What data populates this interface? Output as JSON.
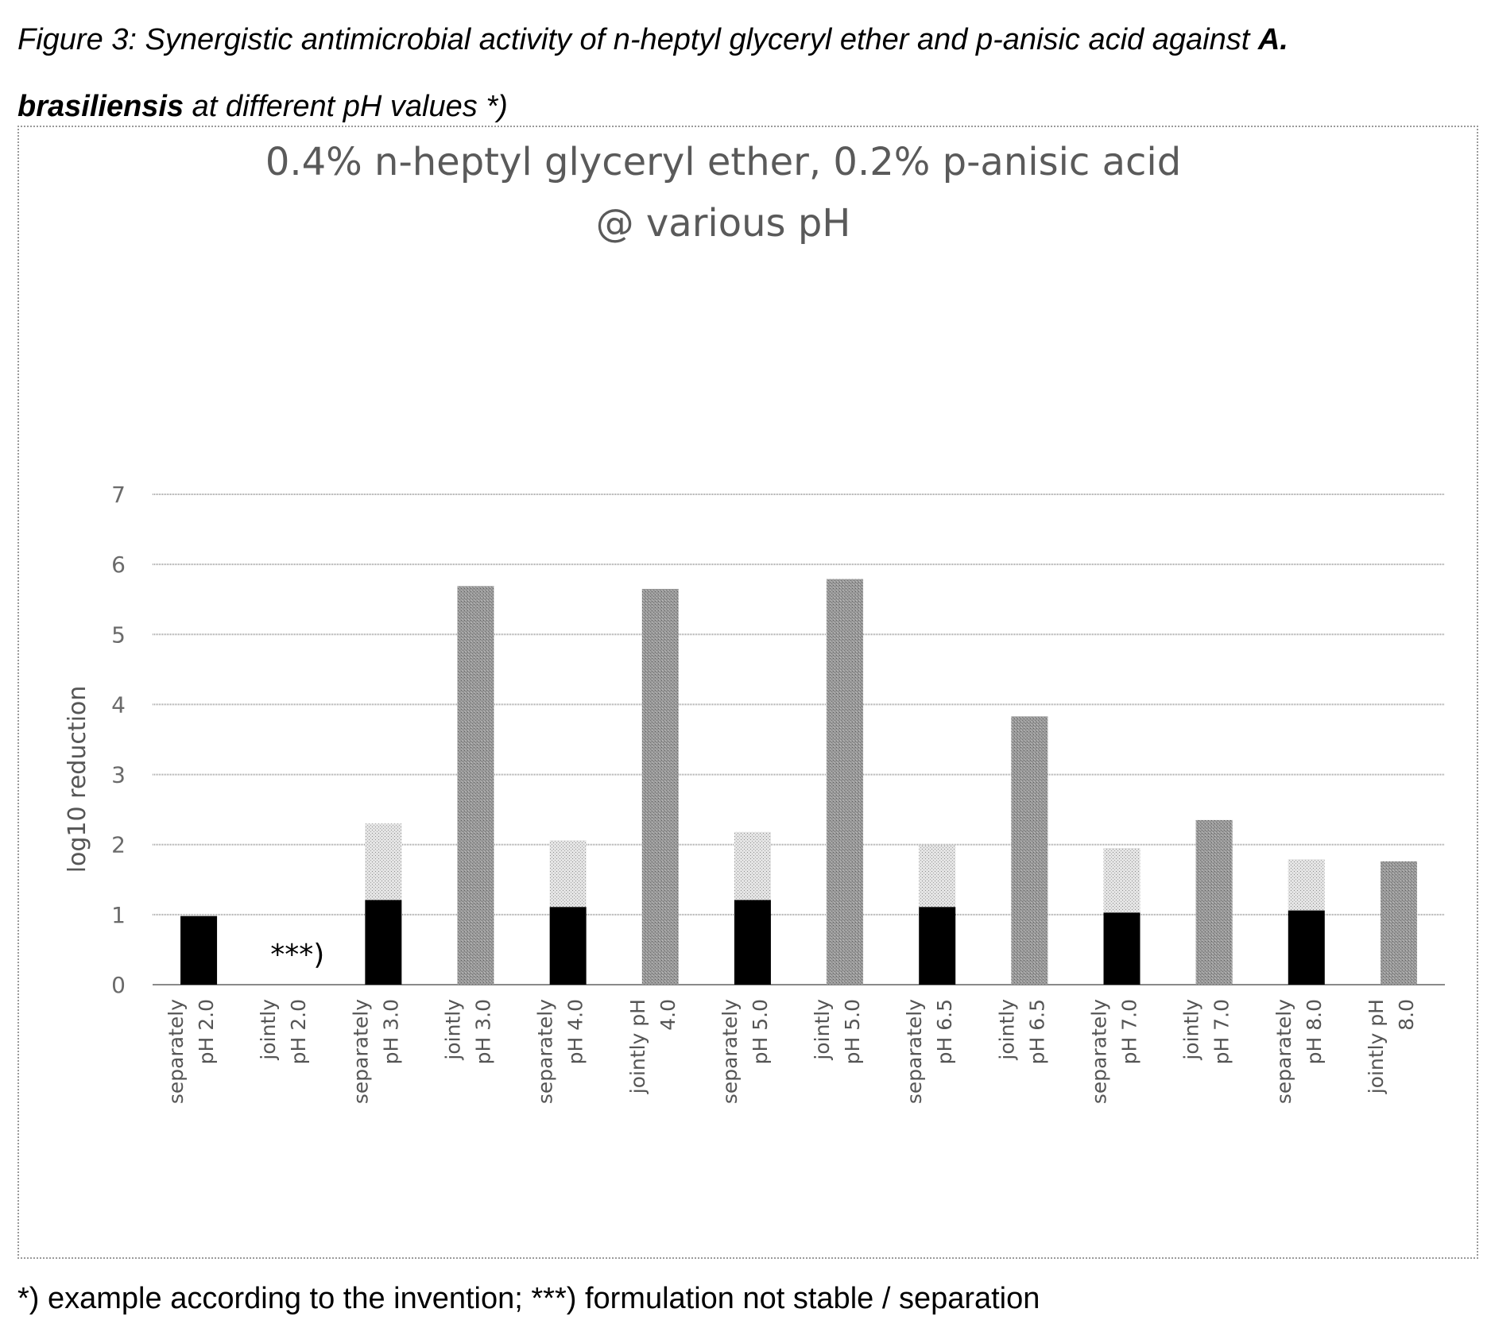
{
  "caption": {
    "line1_text": "Figure 3: Synergistic antimicrobial activity of n-heptyl glyceryl ether and p-anisic acid against ",
    "line1_bold": "A.",
    "line2_bold": "brasiliensis",
    "line2_text": " at different pH values *)"
  },
  "footnote": "*) example according to the invention; ***) formulation not stable / separation",
  "chart_data": {
    "type": "bar",
    "title": [
      "0.4% n-heptyl glyceryl ether, 0.2% p-anisic acid",
      "@ various pH"
    ],
    "ylabel": "log10 reduction",
    "xlabel": "",
    "ylim": [
      0,
      7
    ],
    "yticks": [
      0,
      1,
      2,
      3,
      4,
      5,
      6,
      7
    ],
    "grid": true,
    "legend": "none",
    "categories": [
      [
        "separately",
        "pH 2.0"
      ],
      [
        "jointly",
        "pH 2.0"
      ],
      [
        "separately",
        "pH 3.0"
      ],
      [
        "jointly",
        "pH 3.0"
      ],
      [
        "separately",
        "pH 4.0"
      ],
      [
        "jointly pH",
        "4.0"
      ],
      [
        "separately",
        "pH 5.0"
      ],
      [
        "jointly",
        "pH 5.0"
      ],
      [
        "separately",
        "pH 6.5"
      ],
      [
        "jointly",
        "pH 6.5"
      ],
      [
        "separately",
        "pH 7.0"
      ],
      [
        "jointly",
        "pH 7.0"
      ],
      [
        "separately",
        "pH 8.0"
      ],
      [
        "jointly pH",
        "8.0"
      ]
    ],
    "stacked": true,
    "series": [
      {
        "color": "#000000",
        "pattern": "solid",
        "values": [
          0.98,
          null,
          1.21,
          null,
          1.11,
          null,
          1.21,
          null,
          1.11,
          null,
          1.03,
          null,
          1.06,
          null
        ]
      },
      {
        "color": "#d4d4d4",
        "pattern": "light-stipple",
        "values": [
          null,
          null,
          1.09,
          null,
          0.95,
          null,
          0.97,
          null,
          0.88,
          null,
          0.92,
          null,
          0.73,
          null
        ]
      },
      {
        "color": "#8a8a8a",
        "pattern": "dark-stipple",
        "values": [
          null,
          null,
          null,
          5.69,
          null,
          5.65,
          null,
          5.79,
          null,
          3.83,
          null,
          2.35,
          null,
          1.76
        ]
      }
    ],
    "annotations": [
      {
        "category_index": 1,
        "text": "***)"
      }
    ]
  }
}
